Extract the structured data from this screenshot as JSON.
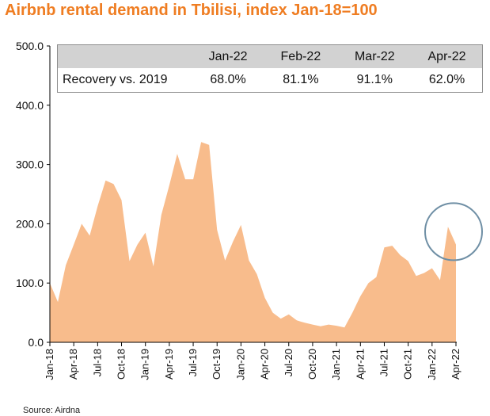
{
  "title": "Airbnb rental demand in Tbilisi, index Jan-18=100",
  "source": "Source: Airdna",
  "table": {
    "headers": [
      "Jan-22",
      "Feb-22",
      "Mar-22",
      "Apr-22"
    ],
    "row_label": "Recovery vs. 2019",
    "values": [
      "68.0%",
      "81.1%",
      "91.1%",
      "62.0%"
    ]
  },
  "colors": {
    "title": "#ef7d22",
    "area_fill": "#f8bc8c",
    "axis": "#000000",
    "highlight_circle": "#6f8fa5",
    "table_header_bg": "#d2d2d2"
  },
  "chart_data": {
    "type": "area",
    "x": [
      "Jan-18",
      "Feb-18",
      "Mar-18",
      "Apr-18",
      "May-18",
      "Jun-18",
      "Jul-18",
      "Aug-18",
      "Sep-18",
      "Oct-18",
      "Nov-18",
      "Dec-18",
      "Jan-19",
      "Feb-19",
      "Mar-19",
      "Apr-19",
      "May-19",
      "Jun-19",
      "Jul-19",
      "Aug-19",
      "Sep-19",
      "Oct-19",
      "Nov-19",
      "Dec-19",
      "Jan-20",
      "Feb-20",
      "Mar-20",
      "Apr-20",
      "May-20",
      "Jun-20",
      "Jul-20",
      "Aug-20",
      "Sep-20",
      "Oct-20",
      "Nov-20",
      "Dec-20",
      "Jan-21",
      "Feb-21",
      "Mar-21",
      "Apr-21",
      "May-21",
      "Jun-21",
      "Jul-21",
      "Aug-21",
      "Sep-21",
      "Oct-21",
      "Nov-21",
      "Dec-21",
      "Jan-22",
      "Feb-22",
      "Mar-22",
      "Apr-22"
    ],
    "series": [
      {
        "values": [
          100,
          68,
          130,
          165,
          200,
          180,
          230,
          273,
          267,
          240,
          137,
          165,
          185,
          128,
          215,
          265,
          318,
          275,
          275,
          338,
          333,
          190,
          138,
          170,
          198,
          138,
          115,
          75,
          50,
          40,
          47,
          37,
          33,
          30,
          27,
          30,
          28,
          25,
          50,
          78,
          100,
          110,
          160,
          163,
          147,
          137,
          112,
          117,
          125,
          105,
          195,
          165
        ]
      }
    ],
    "xtick_labels": [
      "Jan-18",
      "Apr-18",
      "Jul-18",
      "Oct-18",
      "Jan-19",
      "Apr-19",
      "Jul-19",
      "Oct-19",
      "Jan-20",
      "Apr-20",
      "Jul-20",
      "Oct-20",
      "Jan-21",
      "Apr-21",
      "Jul-21",
      "Oct-21",
      "Jan-22",
      "Apr-22"
    ],
    "ytick_labels": [
      "0.0",
      "100.0",
      "200.0",
      "300.0",
      "400.0",
      "500.0"
    ],
    "ylim": [
      0,
      500
    ],
    "grid": false,
    "legend": "none",
    "annotation": "circle highlighting Mar-22 to Apr-22"
  }
}
